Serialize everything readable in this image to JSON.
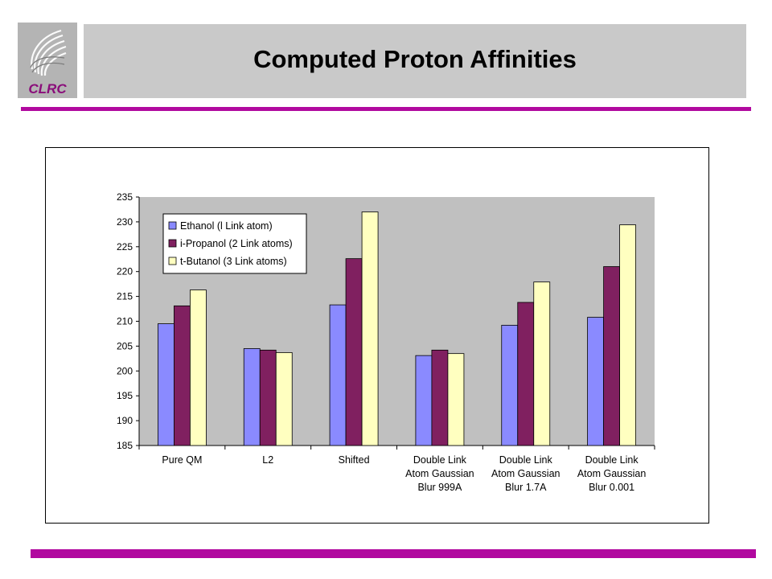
{
  "slide": {
    "title": "Computed Proton Affinities",
    "logo_text": "CLRC"
  },
  "colors": {
    "accent_rule": "#b1099f",
    "plot_bg": "#c0c0c0"
  },
  "chart_data": {
    "type": "bar",
    "categories": [
      [
        "Pure QM"
      ],
      [
        "L2"
      ],
      [
        "Shifted"
      ],
      [
        "Double Link",
        "Atom Gaussian",
        "Blur 999A"
      ],
      [
        "Double Link",
        "Atom Gaussian",
        "Blur 1.7A"
      ],
      [
        "Double Link",
        "Atom Gaussian",
        "Blur 0.001"
      ]
    ],
    "series": [
      {
        "name": "Ethanol (l Link atom)",
        "color": "#8a8aff",
        "values": [
          209.5,
          204.5,
          213.3,
          203.1,
          209.2,
          210.8
        ]
      },
      {
        "name": "i-Propanol (2 Link atoms)",
        "color": "#802060",
        "values": [
          213.1,
          204.2,
          222.6,
          204.2,
          213.8,
          221.0
        ]
      },
      {
        "name": "t-Butanol (3 Link atoms)",
        "color": "#ffffc0",
        "values": [
          216.3,
          203.7,
          232.0,
          203.5,
          217.9,
          229.4
        ]
      }
    ],
    "ylim": [
      185,
      235
    ],
    "yticks": [
      185,
      190,
      195,
      200,
      205,
      210,
      215,
      220,
      225,
      230,
      235
    ],
    "legend_position": "top-left",
    "grid": false
  }
}
